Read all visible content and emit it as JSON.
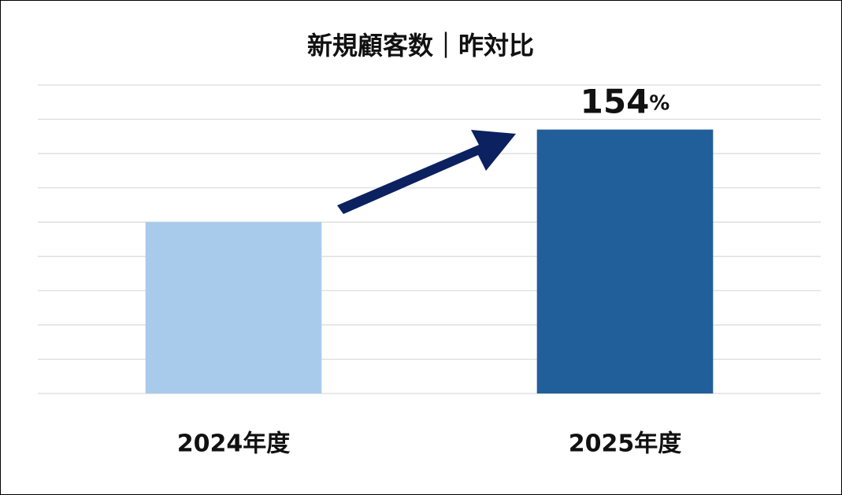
{
  "chart_data": {
    "type": "bar",
    "title": "新規顧客数｜昨対比",
    "categories": [
      "2024年度",
      "2025年度"
    ],
    "values": [
      100,
      154
    ],
    "value_labels": [
      null,
      "154%"
    ],
    "colors": [
      "#a9cbeb",
      "#215f9a"
    ],
    "ylim": [
      0,
      180
    ],
    "yticks": [
      0,
      20,
      40,
      60,
      80,
      100,
      120,
      140,
      160,
      180
    ],
    "grid": true
  }
}
